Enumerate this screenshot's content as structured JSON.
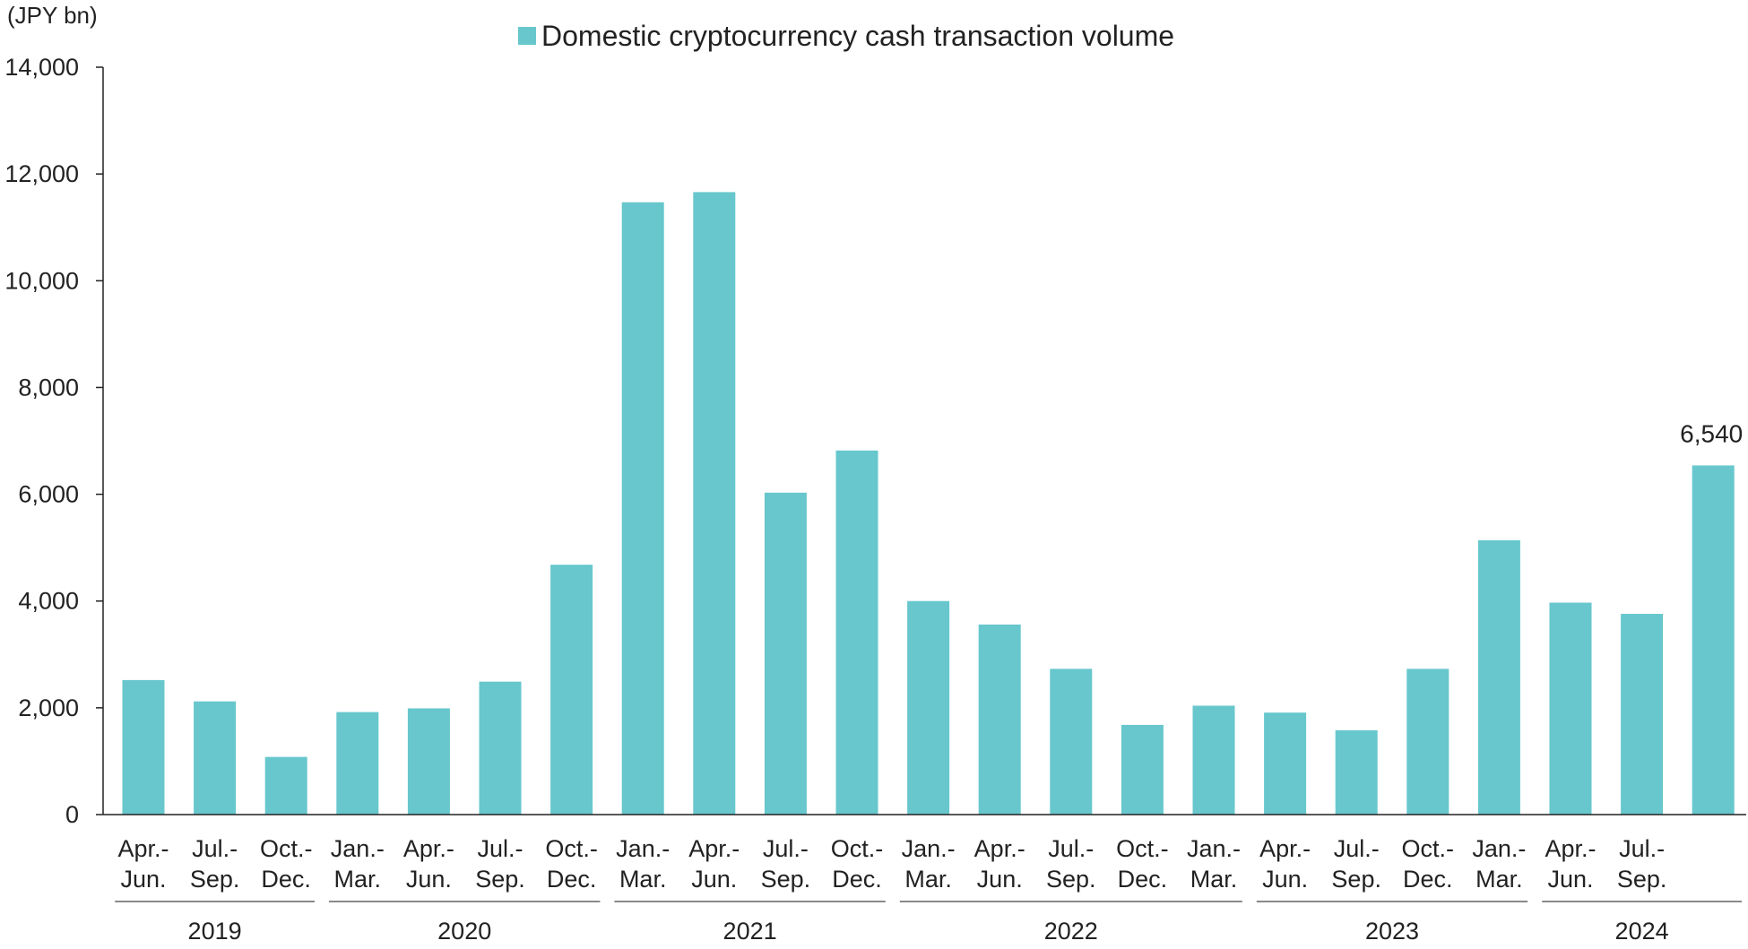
{
  "chart_data": {
    "type": "bar",
    "unit_label": "(JPY bn)",
    "legend": {
      "label": "Domestic cryptocurrency cash transaction volume",
      "placement": "top-center"
    },
    "bar_color": "#67C7CD",
    "ylim": [
      0,
      14000
    ],
    "yticks": [
      {
        "value": 0,
        "label": "0"
      },
      {
        "value": 2000,
        "label": "2,000"
      },
      {
        "value": 4000,
        "label": "4,000"
      },
      {
        "value": 6000,
        "label": "6,000"
      },
      {
        "value": 8000,
        "label": "8,000"
      },
      {
        "value": 10000,
        "label": "10,000"
      },
      {
        "value": 12000,
        "label": "12,000"
      },
      {
        "value": 14000,
        "label": "14,000"
      }
    ],
    "grid": false,
    "categories": [
      [
        "Apr.-",
        "Jun."
      ],
      [
        "Jul.-",
        "Sep."
      ],
      [
        "Oct.-",
        "Dec."
      ],
      [
        "Jan.-",
        "Mar."
      ],
      [
        "Apr.-",
        "Jun."
      ],
      [
        "Jul.-",
        "Sep."
      ],
      [
        "Oct.-",
        "Dec."
      ],
      [
        "Jan.-",
        "Mar."
      ],
      [
        "Apr.-",
        "Jun."
      ],
      [
        "Jul.-",
        "Sep."
      ],
      [
        "Oct.-",
        "Dec."
      ],
      [
        "Jan.-",
        "Mar."
      ],
      [
        "Apr.-",
        "Jun."
      ],
      [
        "Jul.-",
        "Sep."
      ],
      [
        "Oct.-",
        "Dec."
      ],
      [
        "Jan.-",
        "Mar."
      ],
      [
        "Apr.-",
        "Jun."
      ],
      [
        "Jul.-",
        "Sep."
      ],
      [
        "Oct.-",
        "Dec."
      ],
      [
        "Jan.-",
        "Mar."
      ],
      [
        "Apr.-",
        "Jun."
      ],
      [
        "Jul.-",
        "Sep."
      ],
      [
        "",
        ""
      ]
    ],
    "values": [
      2520,
      2120,
      1080,
      1920,
      1990,
      2490,
      4680,
      11470,
      11660,
      6030,
      6820,
      4000,
      3560,
      2730,
      1680,
      2040,
      1910,
      1580,
      2730,
      5140,
      3970,
      3760,
      6540
    ],
    "years": [
      {
        "label": "2019",
        "start": 0,
        "end": 2
      },
      {
        "label": "2020",
        "start": 3,
        "end": 6
      },
      {
        "label": "2021",
        "start": 7,
        "end": 10
      },
      {
        "label": "2022",
        "start": 11,
        "end": 15
      },
      {
        "label": "2023",
        "start": 16,
        "end": 19
      },
      {
        "label": "2024",
        "start": 20,
        "end": 22
      }
    ],
    "data_labels": [
      {
        "index": 22,
        "text": "6,540"
      }
    ]
  }
}
